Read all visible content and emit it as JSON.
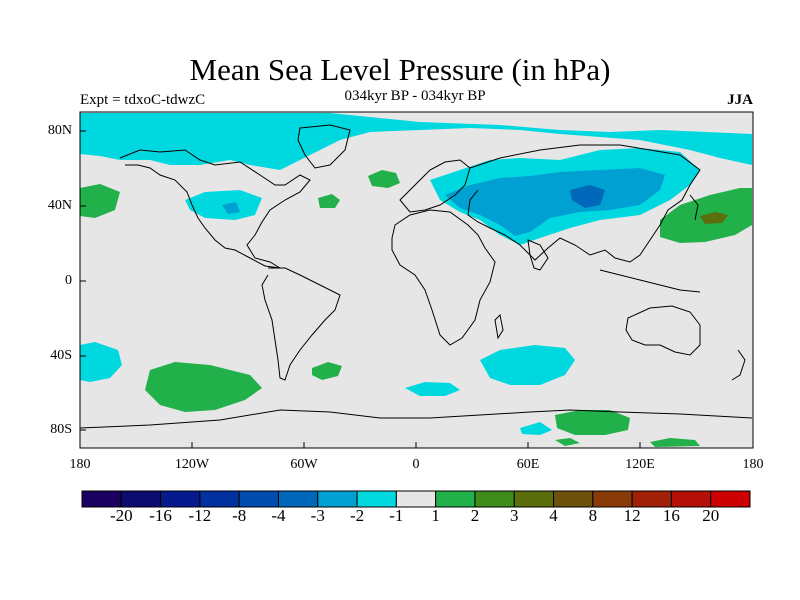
{
  "title": "Mean Sea Level Pressure (in hPa)",
  "subtitle": "034kyr BP - 034kyr BP",
  "experiment": "Expt = tdxoC-tdwzC",
  "season": "JJA",
  "map": {
    "latitude_labels": [
      "80N",
      "40N",
      "0",
      "40S",
      "80S"
    ],
    "longitude_labels": [
      "180",
      "120W",
      "60W",
      "0",
      "60E",
      "120E",
      "180"
    ],
    "background_color": "#e6e6e6"
  },
  "colorbar": {
    "labels": [
      "-20",
      "-16",
      "-12",
      "-8",
      "-4",
      "-3",
      "-2",
      "-1",
      "1",
      "2",
      "3",
      "4",
      "8",
      "12",
      "16",
      "20"
    ],
    "colors": [
      "#1a0060",
      "#0c0c6e",
      "#051a8c",
      "#00319f",
      "#004dad",
      "#0068bb",
      "#00a0d2",
      "#00d8e0",
      "#e6e6e6",
      "#22b04a",
      "#3e8c1c",
      "#5a6e0c",
      "#6e520c",
      "#883a08",
      "#a02008",
      "#b41008",
      "#cc0000"
    ]
  }
}
